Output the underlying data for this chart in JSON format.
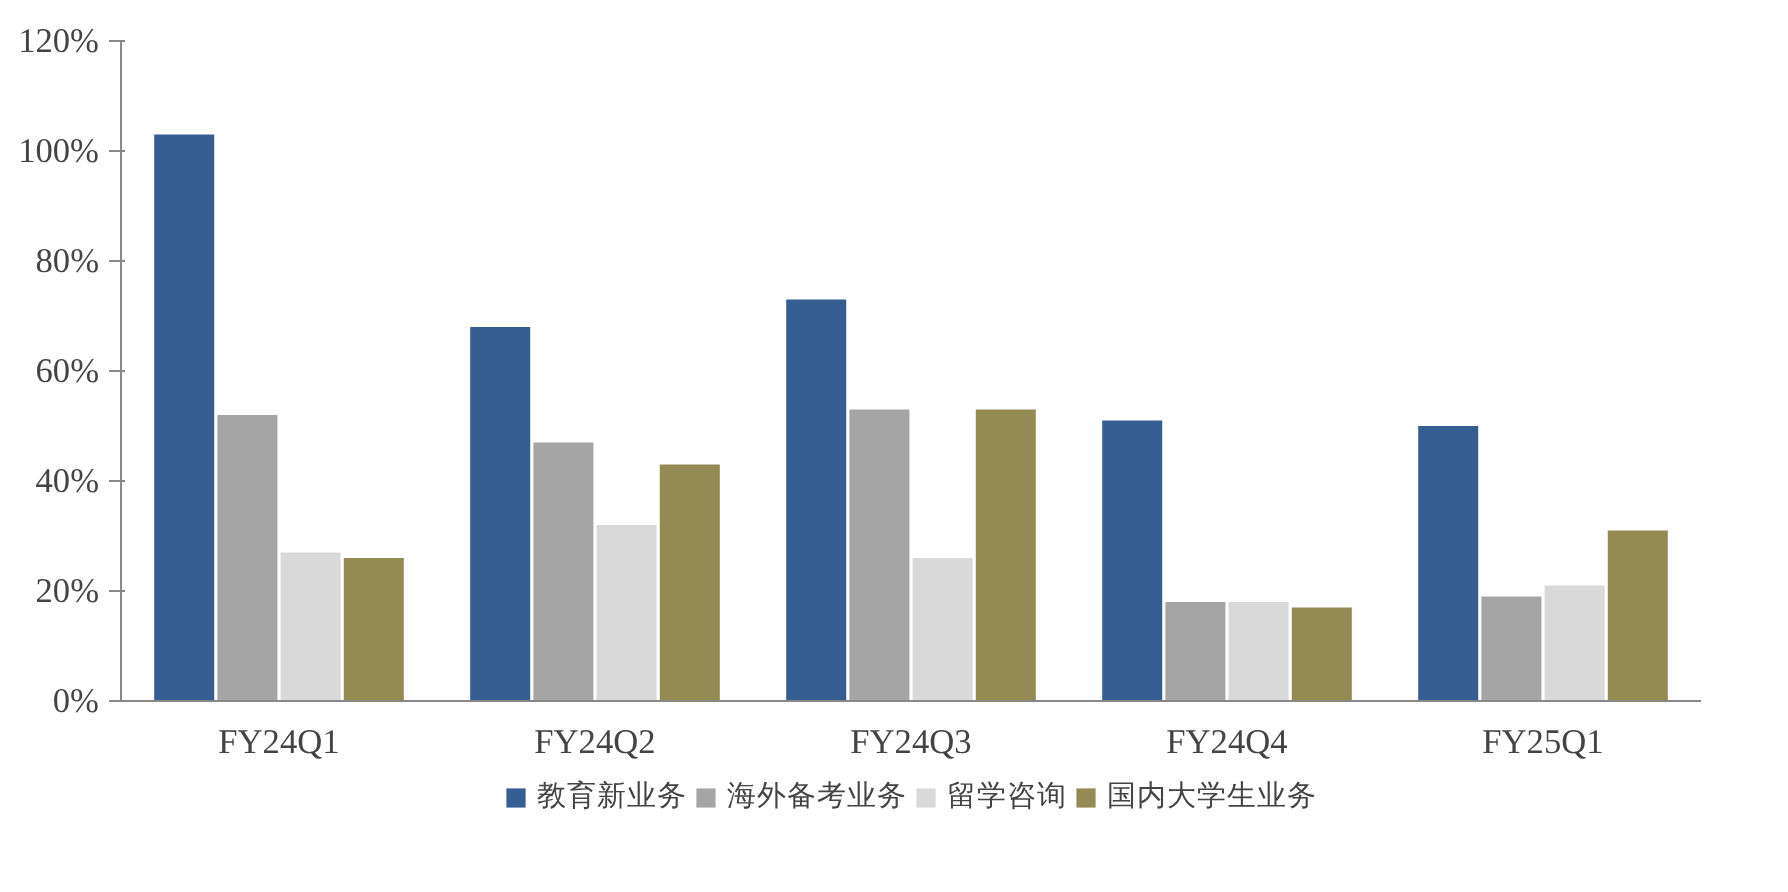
{
  "chart_data": {
    "type": "bar",
    "categories": [
      "FY24Q1",
      "FY24Q2",
      "FY24Q3",
      "FY24Q4",
      "FY25Q1"
    ],
    "series": [
      {
        "name": "教育新业务",
        "color": "#375e92",
        "values": [
          103,
          68,
          73,
          51,
          50
        ]
      },
      {
        "name": "海外备考业务",
        "color": "#a5a5a5",
        "values": [
          52,
          47,
          53,
          18,
          19
        ]
      },
      {
        "name": "留学咨询",
        "color": "#d9d9d9",
        "values": [
          27,
          32,
          26,
          18,
          21
        ]
      },
      {
        "name": "国内大学生业务",
        "color": "#948a54",
        "values": [
          26,
          43,
          53,
          17,
          31
        ]
      }
    ],
    "ylim": [
      0,
      120
    ],
    "yticks": [
      {
        "value": 0,
        "label": "0%"
      },
      {
        "value": 20,
        "label": "20%"
      },
      {
        "value": 40,
        "label": "40%"
      },
      {
        "value": 60,
        "label": "60%"
      },
      {
        "value": 80,
        "label": "80%"
      },
      {
        "value": 100,
        "label": "100%"
      },
      {
        "value": 120,
        "label": "120%"
      }
    ],
    "grid": false,
    "legend": "bottom"
  }
}
